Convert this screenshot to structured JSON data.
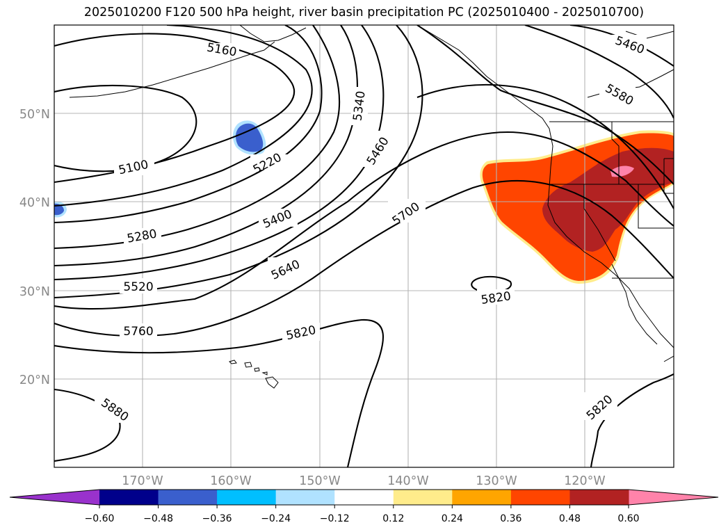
{
  "title": "2025010200 F120 500 hPa height, river basin precipitation PC (2025010400 - 2025010700)",
  "map": {
    "lat_labels": [
      "50°N",
      "40°N",
      "30°N",
      "20°N"
    ],
    "lon_labels": [
      "170°W",
      "160°W",
      "150°W",
      "140°W",
      "130°W",
      "120°W"
    ],
    "contour_labels": [
      "5160",
      "5100",
      "5220",
      "5340",
      "5460",
      "5280",
      "5400",
      "5520",
      "5640",
      "5700",
      "5760",
      "5820",
      "5820",
      "5880",
      "5820",
      "5460",
      "5580"
    ]
  },
  "colorbar": {
    "ticks": [
      "−0.60",
      "−0.48",
      "−0.36",
      "−0.24",
      "−0.12",
      "0.12",
      "0.24",
      "0.36",
      "0.48",
      "0.60"
    ],
    "colors": [
      "#9932cc",
      "#00008b",
      "#3a5fcd",
      "#00bfff",
      "#b0e2ff",
      "#ffffff",
      "#ffec8b",
      "#ffa500",
      "#ff4500",
      "#b22222",
      "#ff83aa"
    ]
  }
}
